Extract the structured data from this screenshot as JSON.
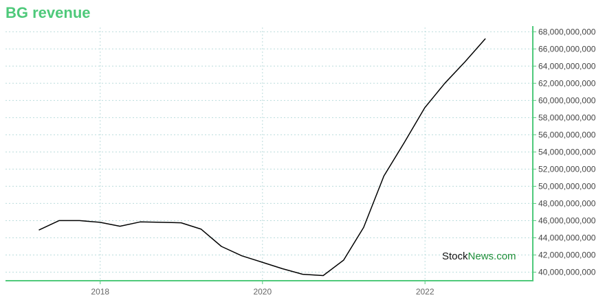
{
  "title": "BG revenue",
  "watermark": {
    "part1": "Stock",
    "part2": "News.com"
  },
  "colors": {
    "accent": "#4ec97a",
    "line": "#000000",
    "grid": "#b9dcdc"
  },
  "chart_data": {
    "type": "line",
    "title": "BG revenue",
    "xlabel": "",
    "ylabel": "",
    "x_ticks": [
      "2018",
      "2020",
      "2022"
    ],
    "y_ticks": [
      "40,000,000,000",
      "42,000,000,000",
      "44,000,000,000",
      "46,000,000,000",
      "48,000,000,000",
      "50,000,000,000",
      "52,000,000,000",
      "54,000,000,000",
      "56,000,000,000",
      "58,000,000,000",
      "60,000,000,000",
      "62,000,000,000",
      "64,000,000,000",
      "66,000,000,000",
      "68,000,000,000"
    ],
    "ylim": [
      39000000000,
      68500000000
    ],
    "xlim": [
      "2016-11-01",
      "2023-05-01"
    ],
    "grid": true,
    "series": [
      {
        "values": [
          {
            "x": "2017-03-31",
            "y": 44900000000
          },
          {
            "x": "2017-06-30",
            "y": 46000000000
          },
          {
            "x": "2017-09-30",
            "y": 46000000000
          },
          {
            "x": "2017-12-31",
            "y": 45800000000
          },
          {
            "x": "2018-03-31",
            "y": 45350000000
          },
          {
            "x": "2018-06-30",
            "y": 45850000000
          },
          {
            "x": "2018-09-30",
            "y": 45800000000
          },
          {
            "x": "2018-12-31",
            "y": 45750000000
          },
          {
            "x": "2019-03-31",
            "y": 45000000000
          },
          {
            "x": "2019-06-30",
            "y": 43000000000
          },
          {
            "x": "2019-09-30",
            "y": 41900000000
          },
          {
            "x": "2019-12-31",
            "y": 41150000000
          },
          {
            "x": "2020-03-31",
            "y": 40400000000
          },
          {
            "x": "2020-06-30",
            "y": 39750000000
          },
          {
            "x": "2020-09-30",
            "y": 39600000000
          },
          {
            "x": "2020-12-31",
            "y": 41400000000
          },
          {
            "x": "2021-03-31",
            "y": 45200000000
          },
          {
            "x": "2021-06-30",
            "y": 51200000000
          },
          {
            "x": "2021-09-30",
            "y": 55100000000
          },
          {
            "x": "2021-12-31",
            "y": 59150000000
          },
          {
            "x": "2022-03-31",
            "y": 62000000000
          },
          {
            "x": "2022-06-30",
            "y": 64500000000
          },
          {
            "x": "2022-09-30",
            "y": 67200000000
          }
        ]
      }
    ]
  }
}
